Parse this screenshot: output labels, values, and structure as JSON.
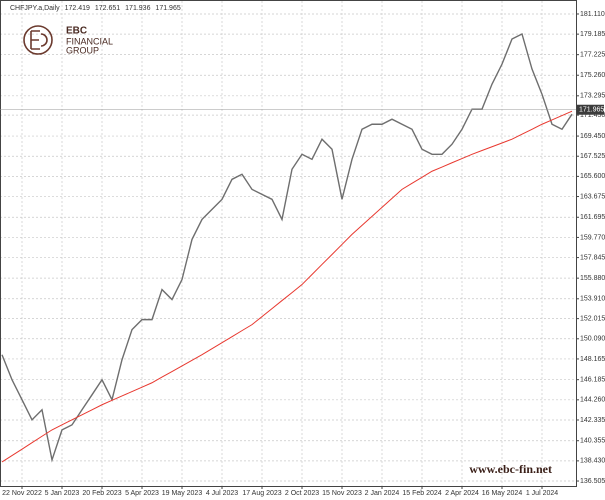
{
  "header": {
    "symbol": "CHFJPY.a,Daily",
    "ohlc": [
      172.419,
      172.651,
      171.936,
      171.965
    ]
  },
  "logo": {
    "name": "EBC",
    "line1": "FINANCIAL",
    "line2": "GROUP"
  },
  "watermark": "www.ebc-fin.net",
  "chart_data": {
    "type": "line",
    "categories": [
      null,
      null,
      "22 Nov 2022",
      null,
      null,
      null,
      "5 Jan 2023",
      null,
      null,
      null,
      "20 Feb 2023",
      null,
      null,
      null,
      "5 Apr 2023",
      null,
      null,
      null,
      "19 May 2023",
      null,
      null,
      null,
      "4 Jul 2023",
      null,
      null,
      null,
      "17 Aug 2023",
      null,
      null,
      null,
      "2 Oct 2023",
      null,
      null,
      null,
      "15 Nov 2023",
      null,
      null,
      null,
      "2 Jan 2024",
      null,
      null,
      null,
      "15 Feb 2024",
      null,
      null,
      null,
      "2 Apr 2024",
      null,
      null,
      null,
      "16 May 2024",
      null,
      null,
      null,
      "1 Jul 2024",
      null,
      null,
      null
    ],
    "series": [
      {
        "color": "#6e6e6e",
        "values": [
          148.57,
          146.18,
          144.27,
          142.35,
          143.31,
          138.52,
          141.39,
          141.87,
          143.31,
          144.74,
          146.18,
          144.27,
          148.09,
          150.96,
          151.92,
          151.92,
          154.79,
          153.84,
          155.75,
          159.58,
          161.49,
          162.45,
          163.41,
          165.32,
          165.8,
          164.36,
          163.88,
          163.41,
          161.49,
          166.28,
          167.71,
          167.23,
          169.15,
          168.19,
          163.41,
          167.23,
          170.1,
          170.58,
          170.58,
          171.06,
          170.58,
          170.1,
          168.19,
          167.71,
          167.71,
          168.67,
          170.1,
          172.02,
          172.02,
          174.41,
          176.32,
          178.72,
          179.2,
          175.85,
          173.45,
          170.58,
          170.1,
          171.54
        ]
      },
      {
        "color": "#e8382f",
        "values": [
          138.33,
          138.94,
          139.55,
          140.17,
          140.78,
          141.39,
          141.87,
          142.35,
          142.83,
          143.31,
          143.79,
          144.21,
          144.63,
          145.05,
          145.47,
          145.89,
          146.43,
          146.96,
          147.5,
          148.03,
          148.57,
          149.14,
          149.72,
          150.29,
          150.87,
          151.44,
          152.21,
          152.97,
          153.74,
          154.5,
          155.27,
          156.23,
          157.19,
          158.14,
          159.1,
          160.06,
          160.92,
          161.78,
          162.64,
          163.5,
          164.36,
          164.94,
          165.51,
          166.09,
          166.49,
          166.9,
          167.3,
          167.71,
          168.07,
          168.43,
          168.79,
          169.15,
          169.63,
          170.1,
          170.58,
          170.99,
          171.41,
          171.83
        ]
      }
    ],
    "ylim": [
      136.03,
      182.35
    ],
    "yticks": [
      {
        "value": 181.11,
        "label": "181.110"
      },
      179.185,
      177.225,
      {
        "value": 175.26,
        "label": "175.260"
      },
      173.295,
      {
        "value": 171.45,
        "label": "171.450"
      },
      {
        "value": 169.45,
        "label": "169.450"
      },
      167.525,
      {
        "value": 165.6,
        "label": "165.600"
      },
      163.675,
      161.695,
      {
        "value": 159.77,
        "label": "159.770"
      },
      157.845,
      {
        "value": 155.88,
        "label": "155.880"
      },
      {
        "value": 153.91,
        "label": "153.910"
      },
      152.015,
      {
        "value": 150.09,
        "label": "150.090"
      },
      148.165,
      146.185,
      {
        "value": 144.26,
        "label": "144.260"
      },
      142.335,
      140.355,
      {
        "value": 138.43,
        "label": "138.430"
      },
      136.505
    ],
    "current_price": 171.965,
    "grid": true
  }
}
